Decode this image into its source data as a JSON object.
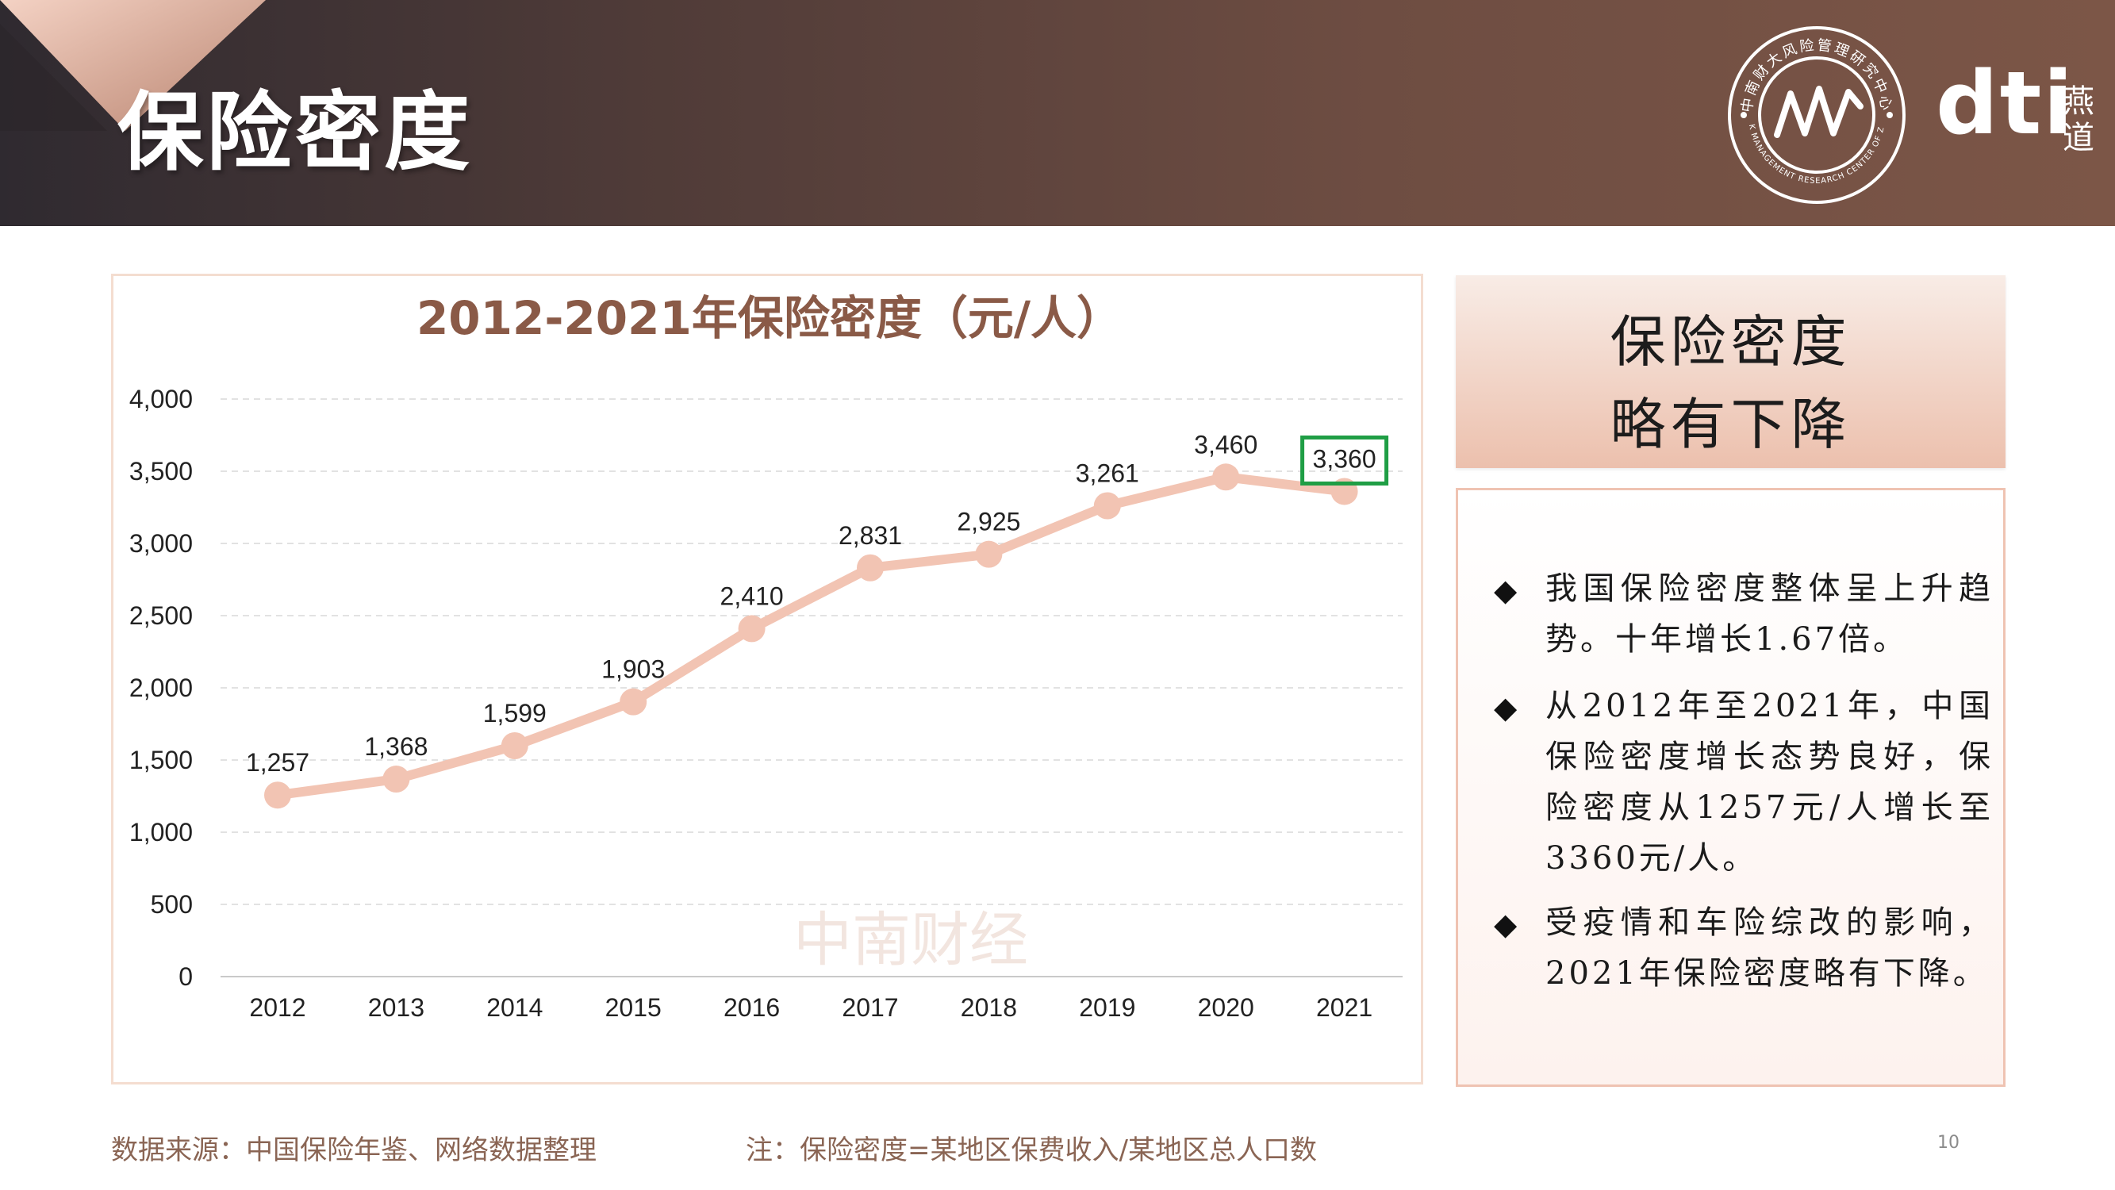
{
  "header": {
    "title": "保险密度",
    "logo_text": "dti",
    "logo_cn": "燕道",
    "seal_text": "中南财大风险管理研究中心",
    "seal_text_en": "RISK MANAGEMENT RESEARCH CENTER OF ZUEL"
  },
  "chart_data": {
    "type": "line",
    "title": "2012-2021年保险密度（元/人）",
    "x": [
      "2012",
      "2013",
      "2014",
      "2015",
      "2016",
      "2017",
      "2018",
      "2019",
      "2020",
      "2021"
    ],
    "series": [
      {
        "values": [
          1257,
          1368,
          1599,
          1903,
          2410,
          2831,
          2925,
          3261,
          3460,
          3360
        ]
      }
    ],
    "data_labels": [
      "1,257",
      "1,368",
      "1,599",
      "1,903",
      "2,410",
      "2,831",
      "2,925",
      "3,261",
      "3,460",
      "3,360"
    ],
    "y_ticks": [
      "0",
      "500",
      "1,000",
      "1,500",
      "2,000",
      "2,500",
      "3,000",
      "3,500",
      "4,000"
    ],
    "ylim": [
      0,
      4000
    ],
    "grid": "horizontal dashed",
    "highlighted_point": "2021",
    "line_color": "#f2c4b3",
    "highlight_color": "#1f9e45",
    "watermark": "中南财经"
  },
  "callout": {
    "line1": "保险密度",
    "line2": "略有下降"
  },
  "bullets": [
    {
      "mark": "◆",
      "text": "我国保险密度整体呈上升趋势。十年增长1.67倍。"
    },
    {
      "mark": "◆",
      "text": "从2012年至2021年，中国保险密度增长态势良好，保险密度从1257元/人增长至3360元/人。"
    },
    {
      "mark": "◆",
      "text": "受疫情和车险综改的影响，2021年保险密度略有下降。"
    }
  ],
  "footer": {
    "source": "数据来源：中国保险年鉴、网络数据整理",
    "note": "注：保险密度=某地区保费收入/某地区总人口数",
    "page": "10"
  },
  "colors": {
    "header_dark": "#2f2a30",
    "header_brown": "#7c5647",
    "title_brown": "#8a5a47",
    "footer_text": "#8a6554"
  }
}
